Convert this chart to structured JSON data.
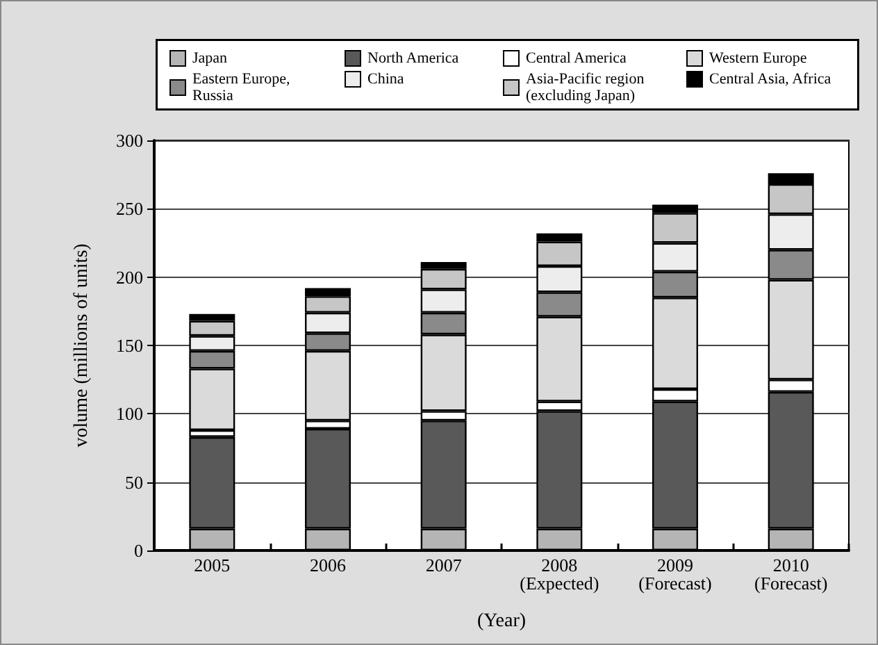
{
  "chart_data": {
    "type": "bar",
    "stacked": true,
    "xlabel": "(Year)",
    "ylabel": "volume (millions of units)",
    "categories": [
      "2005",
      "2006",
      "2007",
      "2008\n(Expected)",
      "2009\n(Forecast)",
      "2010\n(Forecast)"
    ],
    "ylim": [
      0,
      300
    ],
    "yticks": [
      0,
      50,
      100,
      150,
      200,
      250,
      300
    ],
    "grid": "y",
    "legend": "top",
    "series": [
      {
        "name": "Japan",
        "color": "#b5b5b5",
        "values": [
          16,
          16,
          16,
          16,
          16,
          16
        ]
      },
      {
        "name": "North America",
        "color": "#595959",
        "values": [
          67,
          73,
          79,
          86,
          93,
          100
        ]
      },
      {
        "name": "Central America",
        "color": "#ffffff",
        "values": [
          5,
          6,
          7,
          7,
          9,
          9
        ]
      },
      {
        "name": "Western Europe",
        "color": "#dadada",
        "values": [
          45,
          51,
          56,
          62,
          67,
          73
        ]
      },
      {
        "name": "Eastern Europe, Russia",
        "color": "#8a8a8a",
        "values": [
          13,
          13,
          16,
          18,
          19,
          22
        ]
      },
      {
        "name": "China",
        "color": "#ededed",
        "values": [
          11,
          15,
          17,
          19,
          21,
          26
        ]
      },
      {
        "name": "Asia-Pacific region (excluding Japan)",
        "color": "#c6c6c6",
        "values": [
          11,
          12,
          15,
          18,
          22,
          22
        ]
      },
      {
        "name": "Central Asia, Africa",
        "color": "#000000",
        "values": [
          5,
          6,
          5,
          6,
          6,
          8
        ]
      }
    ]
  }
}
